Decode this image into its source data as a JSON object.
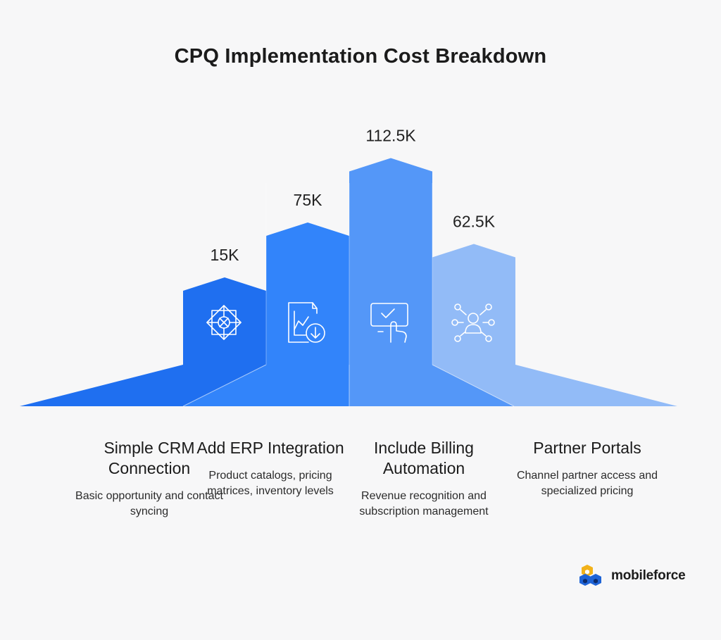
{
  "title": "CPQ Implementation Cost Breakdown",
  "chart_data": {
    "type": "bar",
    "title": "CPQ Implementation Cost Breakdown",
    "categories": [
      "Simple CRM Connection",
      "Add ERP Integration",
      "Include Billing Automation",
      "Partner Portals"
    ],
    "values": [
      15,
      75,
      112.5,
      62.5
    ],
    "value_labels": [
      "15K",
      "75K",
      "112.5K",
      "62.5K"
    ],
    "units": "K",
    "colors": [
      "#1f6ff0",
      "#3284fa",
      "#5497f8",
      "#92bbf7"
    ],
    "icons": [
      "gear-star-icon",
      "document-download-chart-icon",
      "touchscreen-check-icon",
      "network-person-icon"
    ]
  },
  "categories": [
    {
      "title": "Simple CRM Connection",
      "desc": "Basic opportunity and contact syncing"
    },
    {
      "title": "Add ERP Integration",
      "desc": "Product catalogs, pricing matrices, inventory levels"
    },
    {
      "title": "Include Billing Automation",
      "desc": "Revenue recognition and subscription management"
    },
    {
      "title": "Partner Portals",
      "desc": "Channel partner access and specialized pricing"
    }
  ],
  "brand": {
    "name": "mobileforce",
    "colors": [
      "#1e63d6",
      "#f2b21a",
      "#0b2a6b"
    ]
  }
}
